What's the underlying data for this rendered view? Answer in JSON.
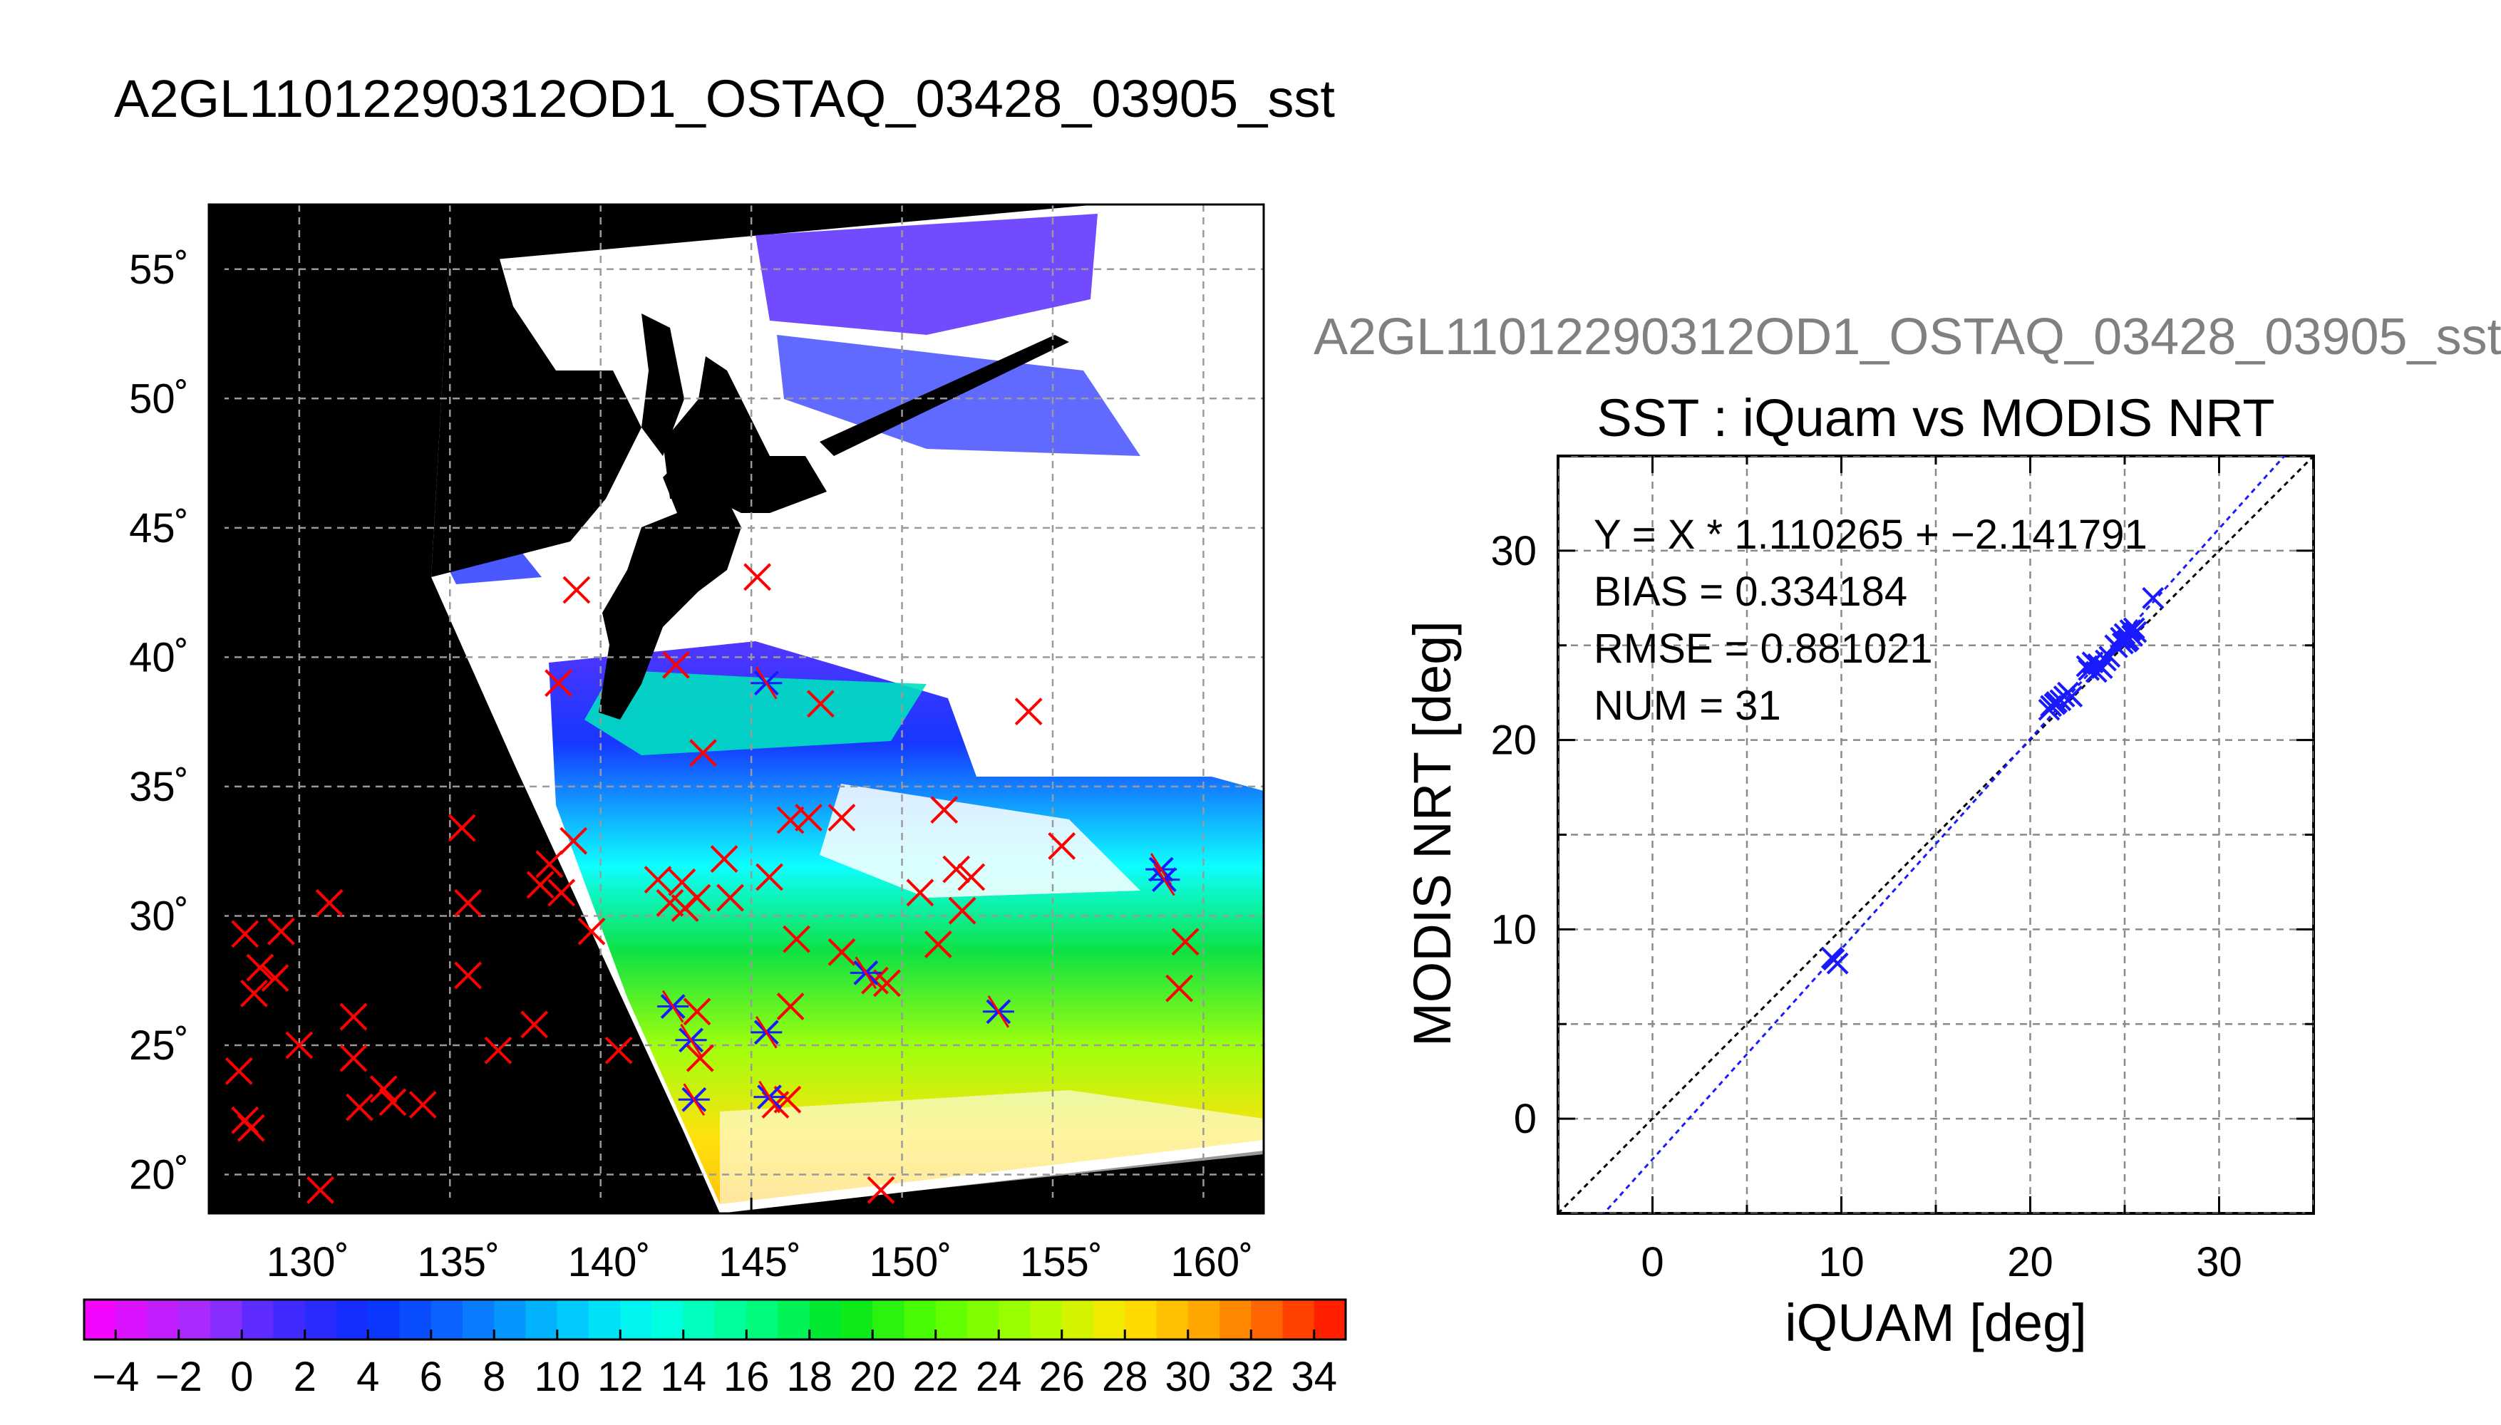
{
  "page": {
    "title": "A2GL11012290312OD1_OSTAQ_03428_03905_sst",
    "right_title": "A2GL11012290312OD1_OSTAQ_03428_03905_sst"
  },
  "chart_data": [
    {
      "type": "scatter",
      "title": "",
      "xlabel": "",
      "ylabel": "",
      "xlim": [
        127,
        162
      ],
      "ylim": [
        18.5,
        57.5
      ],
      "x_ticks": [
        130,
        135,
        140,
        145,
        150,
        155,
        160
      ],
      "y_ticks": [
        20,
        25,
        30,
        35,
        40,
        45,
        50,
        55
      ],
      "x_tick_labels": [
        "130˚",
        "135˚",
        "140˚",
        "145˚",
        "150˚",
        "155˚",
        "160˚"
      ],
      "y_tick_labels": [
        "20˚",
        "25˚",
        "30˚",
        "35˚",
        "40˚",
        "45˚",
        "50˚",
        "55˚"
      ],
      "grid": true,
      "colors": {
        "outside": "#000000",
        "cloud": "#ffffff",
        "land": "#000000",
        "red_marker": "#ff0000",
        "blue_marker": "#1a1aff"
      },
      "red_markers": [
        [
          128.2,
          29.3
        ],
        [
          129.4,
          29.4
        ],
        [
          128.7,
          28.0
        ],
        [
          129.2,
          27.6
        ],
        [
          128.5,
          27.0
        ],
        [
          131.0,
          30.5
        ],
        [
          130.0,
          25.0
        ],
        [
          128.0,
          24.0
        ],
        [
          128.2,
          22.1
        ],
        [
          128.4,
          21.8
        ],
        [
          130.7,
          19.4
        ],
        [
          131.8,
          26.1
        ],
        [
          131.8,
          24.5
        ],
        [
          132.0,
          22.6
        ],
        [
          132.8,
          23.3
        ],
        [
          133.1,
          22.8
        ],
        [
          134.1,
          22.7
        ],
        [
          135.4,
          33.4
        ],
        [
          135.6,
          30.5
        ],
        [
          135.6,
          27.7
        ],
        [
          136.6,
          24.8
        ],
        [
          137.8,
          25.8
        ],
        [
          138.0,
          31.2
        ],
        [
          138.3,
          32.0
        ],
        [
          138.7,
          30.9
        ],
        [
          139.1,
          32.9
        ],
        [
          139.2,
          42.6
        ],
        [
          138.6,
          39.0
        ],
        [
          139.7,
          29.4
        ],
        [
          140.6,
          24.8
        ],
        [
          142.5,
          39.7
        ],
        [
          141.9,
          31.4
        ],
        [
          142.3,
          30.5
        ],
        [
          142.7,
          31.3
        ],
        [
          142.8,
          30.3
        ],
        [
          143.2,
          30.7
        ],
        [
          143.4,
          36.3
        ],
        [
          144.1,
          32.2
        ],
        [
          144.3,
          30.7
        ],
        [
          143.2,
          26.3
        ],
        [
          143.3,
          24.5
        ],
        [
          145.2,
          43.1
        ],
        [
          145.6,
          31.5
        ],
        [
          146.3,
          33.7
        ],
        [
          146.5,
          29.1
        ],
        [
          146.9,
          33.8
        ],
        [
          147.3,
          38.2
        ],
        [
          148.0,
          33.8
        ],
        [
          148.0,
          28.6
        ],
        [
          149.1,
          27.5
        ],
        [
          149.5,
          27.4
        ],
        [
          149.3,
          19.4
        ],
        [
          150.6,
          30.9
        ],
        [
          151.4,
          34.1
        ],
        [
          151.2,
          28.9
        ],
        [
          151.8,
          31.8
        ],
        [
          152.3,
          31.5
        ],
        [
          152.0,
          30.2
        ],
        [
          154.2,
          37.9
        ],
        [
          155.3,
          32.7
        ],
        [
          159.2,
          27.2
        ],
        [
          159.4,
          29.0
        ],
        [
          146.2,
          22.9
        ],
        [
          145.8,
          22.7
        ],
        [
          146.3,
          26.5
        ]
      ],
      "blue_markers": [
        [
          145.5,
          39.0
        ],
        [
          142.4,
          26.5
        ],
        [
          143.0,
          25.2
        ],
        [
          143.1,
          22.9
        ],
        [
          145.5,
          25.5
        ],
        [
          145.6,
          23.0
        ],
        [
          148.8,
          27.8
        ],
        [
          153.2,
          26.3
        ],
        [
          158.6,
          31.8
        ],
        [
          158.7,
          31.4
        ]
      ],
      "series": [
        {
          "name": "",
          "values": []
        }
      ]
    },
    {
      "type": "bar",
      "title": "",
      "categories": [
        "-4",
        "-3",
        "-2",
        "-1",
        "0",
        "1",
        "2",
        "3",
        "4",
        "5",
        "6",
        "7",
        "8",
        "9",
        "10",
        "11",
        "12",
        "13",
        "14",
        "15",
        "16",
        "17",
        "18",
        "19",
        "20",
        "21",
        "22",
        "23",
        "24",
        "25",
        "26",
        "27",
        "28",
        "29",
        "30",
        "31",
        "32",
        "33",
        "34",
        "35"
      ],
      "values": [
        -4,
        -3,
        -2,
        -1,
        0,
        1,
        2,
        3,
        4,
        5,
        6,
        7,
        8,
        9,
        10,
        11,
        12,
        13,
        14,
        15,
        16,
        17,
        18,
        19,
        20,
        21,
        22,
        23,
        24,
        25,
        26,
        27,
        28,
        29,
        30,
        31,
        32,
        33,
        34,
        35
      ],
      "tick_values": [
        -4,
        -2,
        0,
        2,
        4,
        6,
        8,
        10,
        12,
        14,
        16,
        18,
        20,
        22,
        24,
        26,
        28,
        30,
        32,
        34
      ],
      "tick_labels": [
        "−4",
        "−2",
        "0",
        "2",
        "4",
        "6",
        "8",
        "10",
        "12",
        "14",
        "16",
        "18",
        "20",
        "22",
        "24",
        "26",
        "28",
        "30",
        "32",
        "34"
      ],
      "range": [
        -5,
        35
      ],
      "xlabel": "",
      "ylabel": ""
    },
    {
      "type": "scatter",
      "title": "SST : iQuam vs MODIS NRT",
      "xlabel": "iQUAM [deg]",
      "ylabel": "MODIS NRT [deg]",
      "xlim": [
        -5,
        35
      ],
      "ylim": [
        -5,
        35
      ],
      "x_ticks": [
        0,
        10,
        20,
        30
      ],
      "y_ticks": [
        0,
        10,
        20,
        30
      ],
      "grid": true,
      "annotations": [
        "Y = X * 1.110265 + −2.141791",
        "BIAS = 0.334184",
        "RMSE = 0.881021",
        "NUM = 31"
      ],
      "fit": {
        "slope": 1.110265,
        "intercept": -2.141791
      },
      "series": [
        {
          "name": "",
          "x": [
            9.6,
            9.8,
            9.5,
            21.0,
            21.3,
            21.8,
            22.0,
            22.2,
            23.0,
            23.3,
            23.5,
            23.8,
            24.2,
            24.6,
            24.8,
            25.0,
            25.1,
            25.3,
            25.4,
            25.6,
            26.5,
            21.1,
            21.6,
            23.1,
            24.0,
            24.5,
            25.2,
            25.5,
            21.4,
            23.6,
            24.9
          ],
          "y": [
            8.4,
            8.2,
            8.5,
            21.6,
            21.9,
            22.3,
            22.5,
            22.3,
            23.9,
            24.1,
            23.6,
            23.8,
            24.4,
            24.9,
            25.4,
            25.6,
            25.2,
            25.8,
            25.5,
            25.7,
            27.5,
            21.8,
            22.1,
            23.7,
            24.2,
            25.0,
            25.3,
            25.9,
            22.0,
            24.0,
            25.1
          ]
        },
        {
          "name": "",
          "x": [
            -5,
            35
          ],
          "y": [
            -5,
            35
          ]
        }
      ]
    }
  ]
}
